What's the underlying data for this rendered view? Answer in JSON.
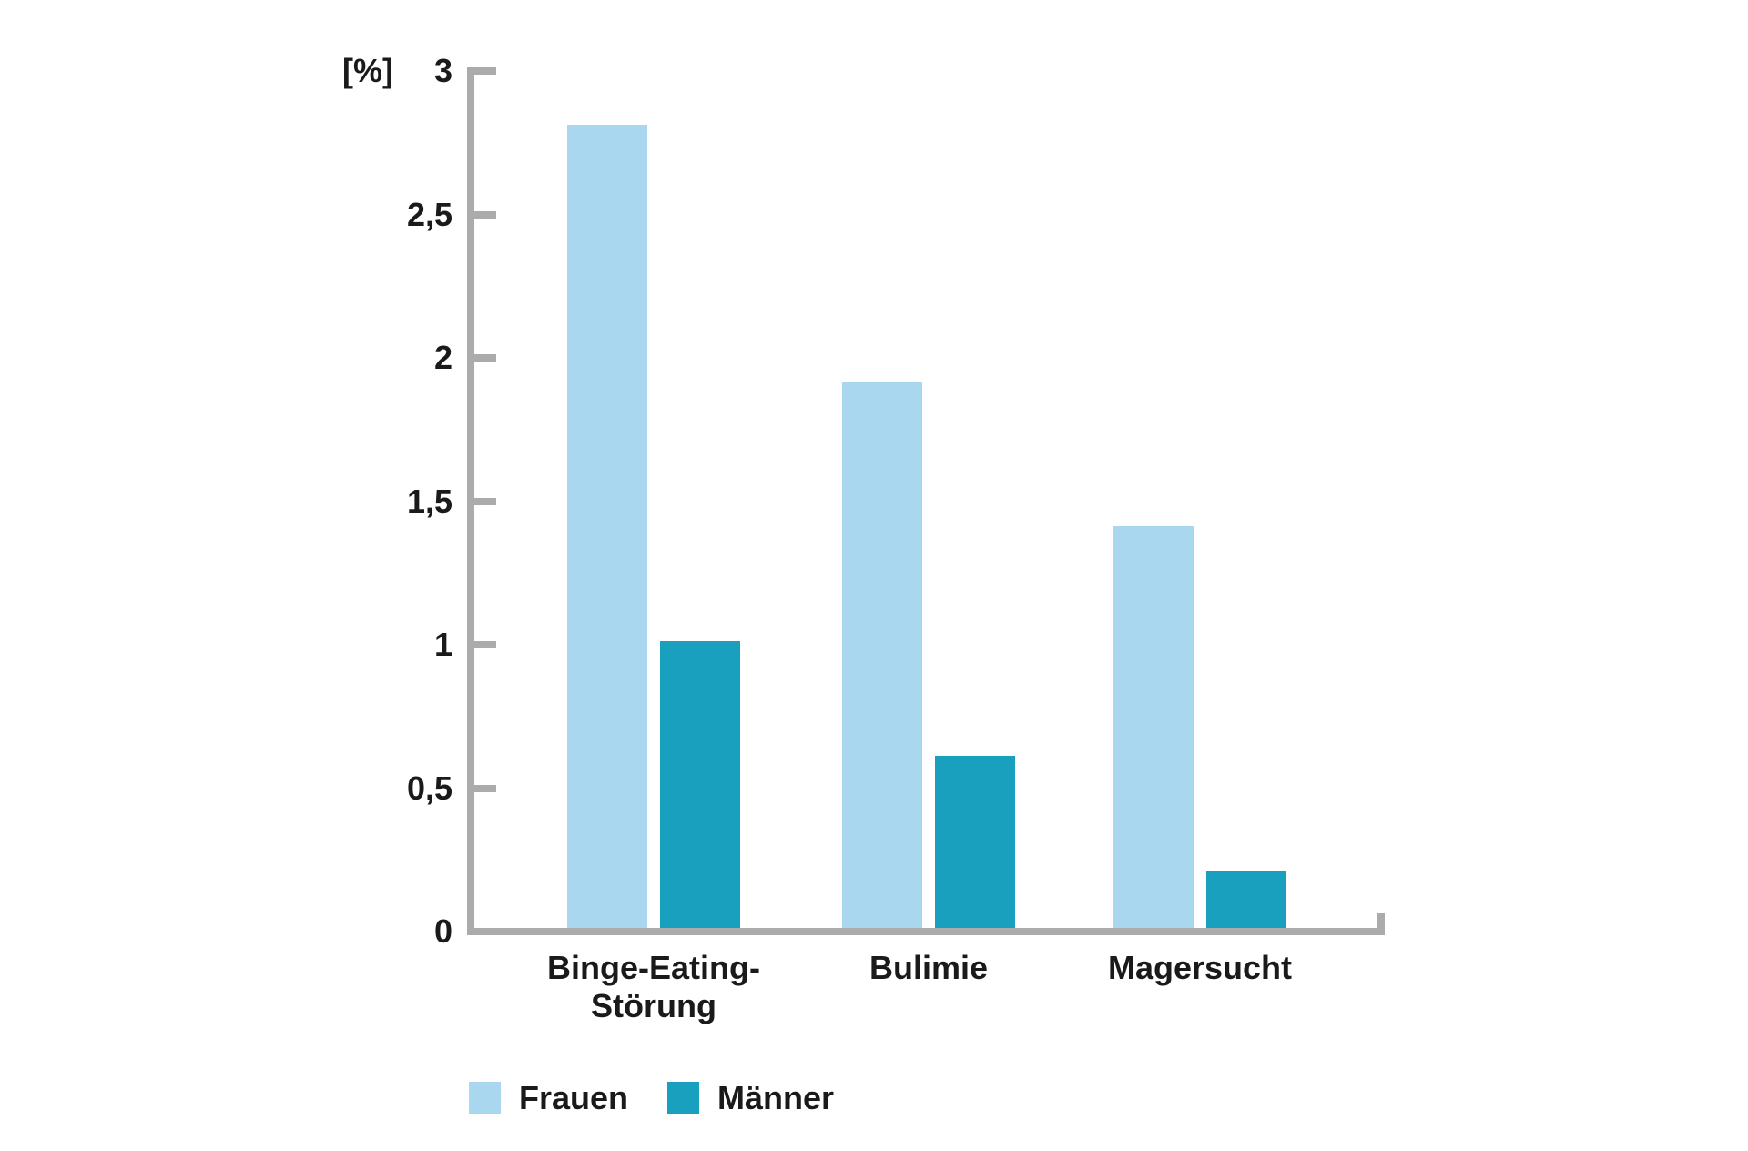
{
  "chart_data": {
    "type": "bar",
    "title": "",
    "unit_label": "[%]",
    "categories": [
      "Binge-Eating-\nStörung",
      "Bulimie",
      "Magersucht"
    ],
    "series": [
      {
        "name": "Frauen",
        "color": "#a9d7f0",
        "values": [
          2.8,
          1.9,
          1.4
        ]
      },
      {
        "name": "Männer",
        "color": "#19a0bf",
        "values": [
          1.0,
          0.6,
          0.2
        ]
      }
    ],
    "y_axis": {
      "min": 0,
      "max": 3,
      "ticks": [
        {
          "value": 3,
          "label": "3"
        },
        {
          "value": 2.5,
          "label": "2,5"
        },
        {
          "value": 2,
          "label": "2"
        },
        {
          "value": 1.5,
          "label": "1,5"
        },
        {
          "value": 1,
          "label": "1"
        },
        {
          "value": 0.5,
          "label": "0,5"
        },
        {
          "value": 0,
          "label": "0"
        }
      ]
    },
    "legend": {
      "position": "bottom",
      "entries": [
        "Frauen",
        "Männer"
      ]
    },
    "grid": false
  },
  "colors": {
    "axis": "#ababab",
    "text": "#1a1a1a",
    "background": "#ffffff"
  }
}
